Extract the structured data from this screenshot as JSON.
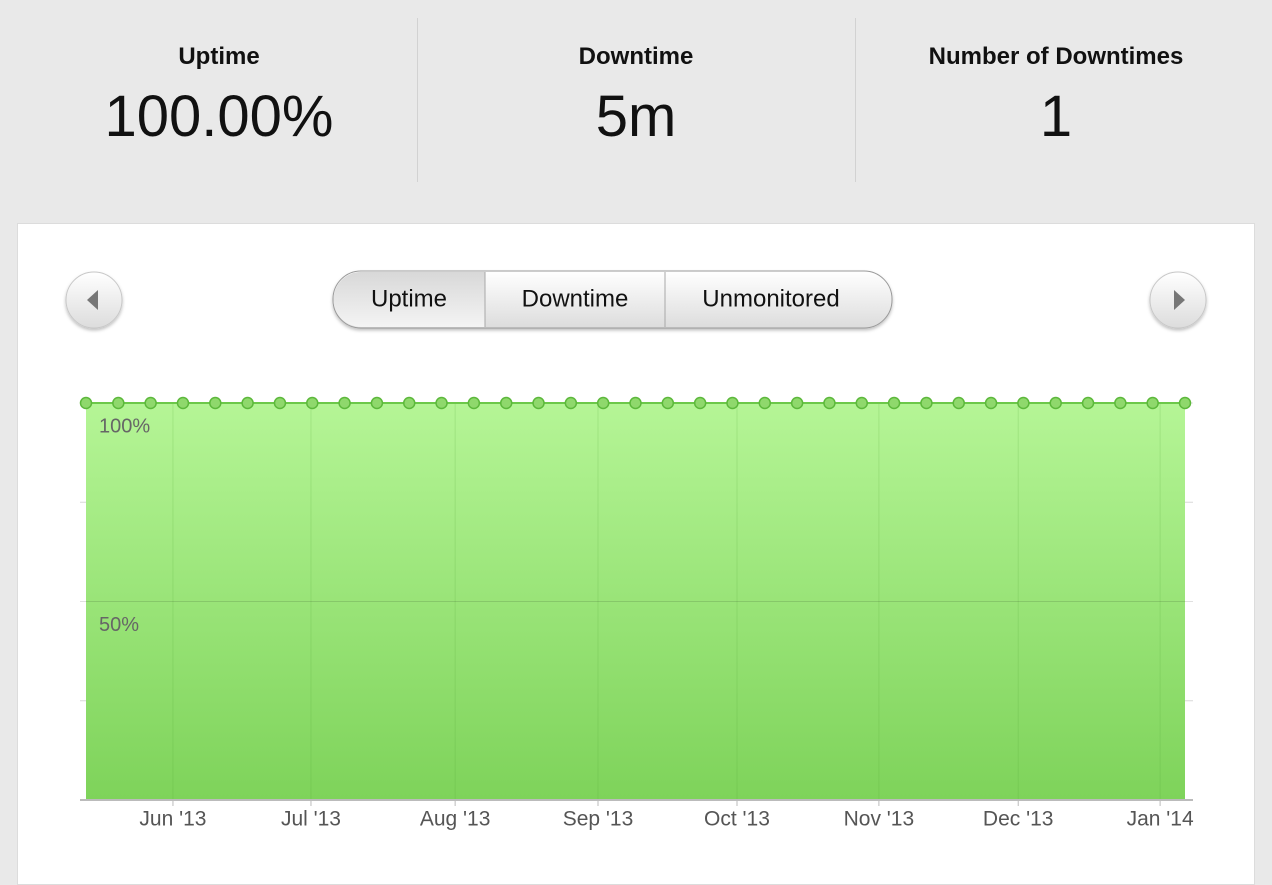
{
  "stats": [
    {
      "label": "Uptime",
      "value": "100.00%"
    },
    {
      "label": "Downtime",
      "value": "5m"
    },
    {
      "label": "Number of Downtimes",
      "value": "1"
    }
  ],
  "tabs": [
    "Uptime",
    "Downtime",
    "Unmonitored"
  ],
  "active_tab": 0,
  "chart_data": {
    "type": "area",
    "x": [
      0,
      1,
      2,
      3,
      4,
      5,
      6,
      7,
      8,
      9,
      10,
      11,
      12,
      13,
      14,
      15,
      16,
      17,
      18,
      19,
      20,
      21,
      22,
      23,
      24,
      25,
      26,
      27,
      28,
      29,
      30,
      31,
      32,
      33,
      34
    ],
    "series": [
      {
        "name": "Uptime",
        "color": "#6cc84a",
        "values": [
          100,
          100,
          100,
          100,
          100,
          100,
          100,
          100,
          100,
          100,
          100,
          100,
          100,
          100,
          100,
          100,
          100,
          100,
          100,
          100,
          100,
          100,
          100,
          100,
          100,
          100,
          100,
          100,
          100,
          100,
          100,
          100,
          100,
          100,
          100
        ]
      }
    ],
    "xlim": [
      0,
      34
    ],
    "xticks": [
      {
        "value": 2.69,
        "label": "Jun '13"
      },
      {
        "value": 6.96,
        "label": "Jul '13"
      },
      {
        "value": 11.42,
        "label": "Aug '13"
      },
      {
        "value": 15.84,
        "label": "Sep '13"
      },
      {
        "value": 20.14,
        "label": "Oct '13"
      },
      {
        "value": 24.53,
        "label": "Nov '13"
      },
      {
        "value": 28.84,
        "label": "Dec '13"
      },
      {
        "value": 33.23,
        "label": "Jan '14"
      }
    ],
    "ylim": [
      0,
      100
    ],
    "yticks": [
      {
        "value": 50,
        "label": "50%"
      },
      {
        "value": 100,
        "label": "100%"
      }
    ],
    "minor_yticks": [
      25,
      75
    ],
    "grid": true
  }
}
